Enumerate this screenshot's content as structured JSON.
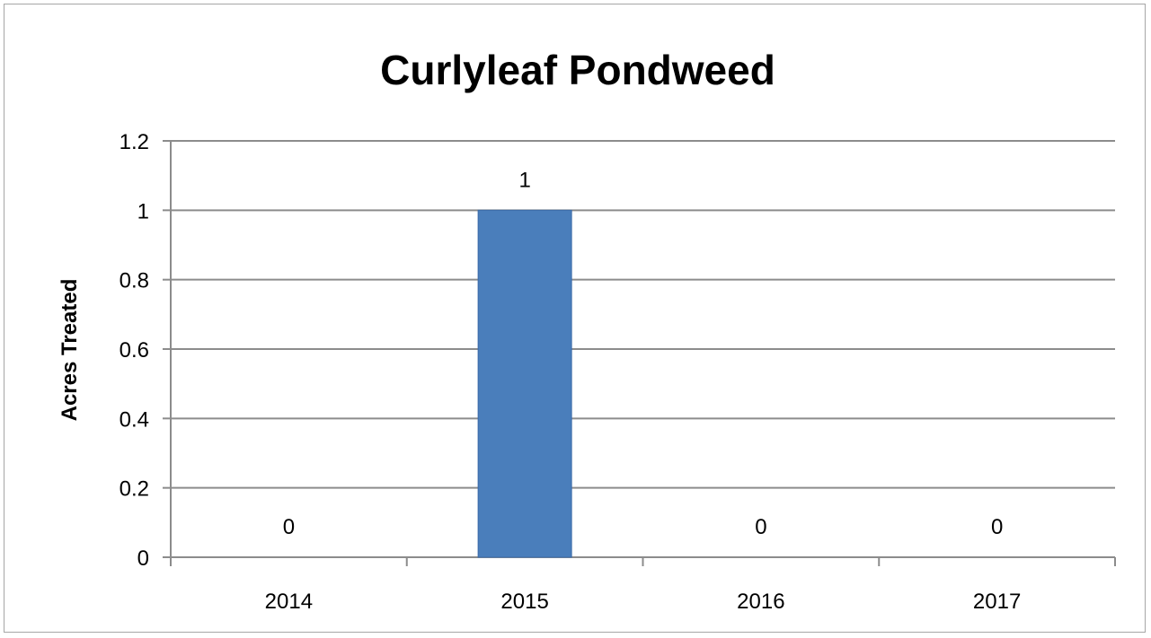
{
  "chart_data": {
    "type": "bar",
    "title": "Curlyleaf Pondweed",
    "xlabel": "",
    "ylabel": "Acres Treated",
    "categories": [
      "2014",
      "2015",
      "2016",
      "2017"
    ],
    "values": [
      0,
      1,
      0,
      0
    ],
    "data_labels": [
      "0",
      "1",
      "0",
      "0"
    ],
    "ylim": [
      0,
      1.2
    ],
    "yticks": [
      0,
      0.2,
      0.4,
      0.6,
      0.8,
      1,
      1.2
    ],
    "ytick_labels": [
      "0",
      "0.2",
      "0.4",
      "0.6",
      "0.8",
      "1",
      "1.2"
    ],
    "grid": true,
    "legend": "none",
    "bar_color": "#4a7ebb",
    "bar_edge_color": "#3a6aa8",
    "grid_color": "#8c8c8c"
  }
}
